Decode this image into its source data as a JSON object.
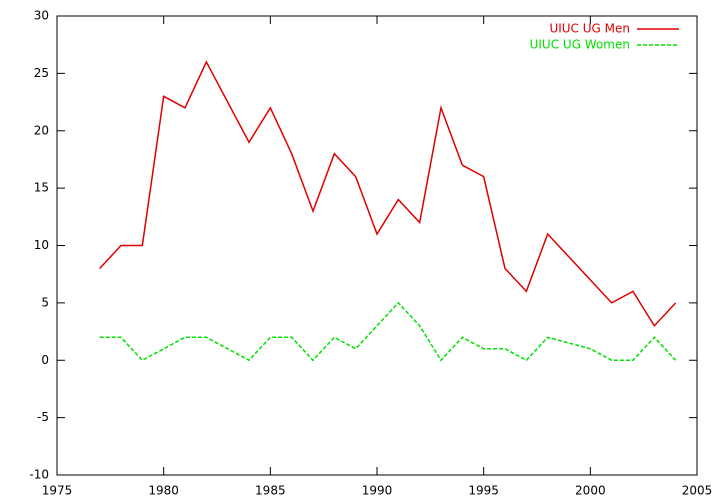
{
  "chart_data": {
    "type": "line",
    "x": [
      1977,
      1978,
      1979,
      1980,
      1981,
      1982,
      1984,
      1985,
      1986,
      1987,
      1988,
      1989,
      1990,
      1991,
      1992,
      1993,
      1994,
      1995,
      1996,
      1997,
      1998,
      2000,
      2001,
      2002,
      2003,
      2004
    ],
    "series": [
      {
        "name": "UIUC UG Men",
        "color": "#e00000",
        "dash": "",
        "values": [
          8,
          10,
          10,
          23,
          22,
          26,
          19,
          22,
          18,
          13,
          18,
          16,
          11,
          14,
          12,
          22,
          17,
          16,
          8,
          6,
          11,
          7,
          5,
          6,
          3,
          5
        ]
      },
      {
        "name": "UIUC UG Women",
        "color": "#00e000",
        "dash": "4,2",
        "values": [
          2,
          2,
          0,
          1,
          2,
          2,
          0,
          2,
          2,
          0,
          2,
          1,
          3,
          5,
          3,
          0,
          2,
          1,
          1,
          0,
          2,
          1,
          0,
          0,
          2,
          0
        ]
      }
    ],
    "xlim": [
      1975,
      2005
    ],
    "xticks": [
      1975,
      1980,
      1985,
      1990,
      1995,
      2000,
      2005
    ],
    "ylim": [
      -10,
      30
    ],
    "yticks": [
      -10,
      -5,
      0,
      5,
      10,
      15,
      20,
      25,
      30
    ],
    "legend": "top-right"
  }
}
